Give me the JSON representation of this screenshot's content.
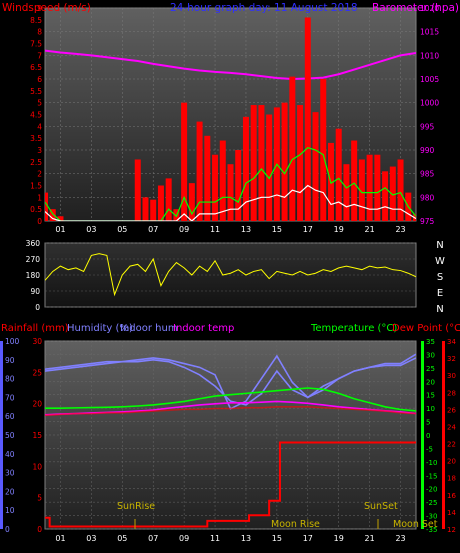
{
  "colors": {
    "wind_speed": "#ff0000",
    "wind_gust": "#00ff00",
    "wind_avg": "#ffffff",
    "barometer": "#ff00ff",
    "direction": "#ffff00",
    "rain": "#ff0000",
    "humidity": "#8080ff",
    "indoor_hum": "#8080ff",
    "indoor_temp": "#ff00ff",
    "temperature": "#00ff00",
    "dewpoint": "#ff0000",
    "plot_top": "#606060",
    "plot_bottom": "#202020",
    "humidity_axis": "#5a5aff",
    "temp_axis": "#00ff00",
    "dew_axis": "#ff0000"
  },
  "top_panel": {
    "left_title": "Windspeed (m/s)",
    "center_title": "24-hour graph day:  11 August 2018",
    "right_title": "Barometer (hpa)"
  },
  "direction_panel": {
    "compass_labels": [
      "N",
      "W",
      "S",
      "E",
      "N"
    ]
  },
  "bottom_panel": {
    "title_rainfall": "Rainfall (mm)",
    "title_humidity": "Humidity (%)",
    "title_indoor_hum": "Indoor hum",
    "title_indoor_temp": "Indoor temp",
    "title_temperature": "Temperature (°C)",
    "title_dewpoint": "Dew Point (°C)",
    "sunrise_label": "SunRise",
    "sunset_label": "SunSet",
    "moonrise_label": "Moon Rise",
    "moonset_label": "Moon Set"
  },
  "chart_data": [
    {
      "type": "area",
      "title": "24-hour graph day:  11 August 2018",
      "x_unit": "hour",
      "x_ticks": [
        "01",
        "03",
        "05",
        "07",
        "09",
        "11",
        "13",
        "15",
        "17",
        "19",
        "21",
        "23"
      ],
      "ylabel_left": "Windspeed (m/s)",
      "ylim_left": [
        0,
        9
      ],
      "yticks_left": [
        "0",
        "0.5",
        "1",
        "1.5",
        "2",
        "2.5",
        "3",
        "3.5",
        "4",
        "4.5",
        "5",
        "5.5",
        "6",
        "6.5",
        "7",
        "7.5",
        "8",
        "8.5",
        "9"
      ],
      "ylabel_right": "Barometer (hpa)",
      "ylim_right": [
        975,
        1020
      ],
      "yticks_right": [
        "975",
        "980",
        "985",
        "990",
        "995",
        "1000",
        "1005",
        "1010",
        "1015",
        "1020"
      ],
      "series": [
        {
          "name": "Windspeed (m/s)",
          "x": [
            0,
            0.5,
            1,
            1.5,
            2,
            2.5,
            3,
            3.5,
            4,
            4.5,
            5,
            5.5,
            6,
            6.5,
            7,
            7.5,
            8,
            8.5,
            9,
            9.5,
            10,
            10.5,
            11,
            11.5,
            12,
            12.5,
            13,
            13.5,
            14,
            14.5,
            15,
            15.5,
            16,
            16.5,
            17,
            17.5,
            18,
            18.5,
            19,
            19.5,
            20,
            20.5,
            21,
            21.5,
            22,
            22.5,
            23,
            23.5,
            24
          ],
          "values": [
            1.2,
            0.5,
            0.2,
            0,
            0,
            0,
            0,
            0,
            0,
            0,
            0,
            0,
            2.6,
            1.0,
            0.9,
            1.5,
            1.8,
            0.5,
            5.0,
            1.6,
            4.2,
            3.6,
            2.8,
            3.4,
            2.4,
            3.0,
            4.4,
            4.9,
            4.9,
            4.5,
            4.8,
            5.0,
            6.1,
            4.9,
            8.6,
            4.6,
            6.0,
            3.3,
            3.9,
            2.4,
            3.4,
            2.6,
            2.8,
            2.8,
            2.1,
            2.3,
            2.6,
            1.2,
            0.3
          ]
        },
        {
          "name": "Wind gust",
          "x": [
            0,
            0.5,
            1,
            1.5,
            2,
            2.5,
            3,
            3.5,
            4,
            4.5,
            5,
            5.5,
            6,
            6.5,
            7,
            7.5,
            8,
            8.5,
            9,
            9.5,
            10,
            10.5,
            11,
            11.5,
            12,
            12.5,
            13,
            13.5,
            14,
            14.5,
            15,
            15.5,
            16,
            16.5,
            17,
            17.5,
            18,
            18.5,
            19,
            19.5,
            20,
            20.5,
            21,
            21.5,
            22,
            22.5,
            23,
            23.5,
            24
          ],
          "values": [
            0.8,
            0.3,
            0,
            0,
            0,
            0,
            0,
            0,
            0,
            0,
            0,
            0,
            0,
            0,
            0,
            0,
            0.5,
            0.2,
            1.0,
            0.3,
            0.8,
            0.8,
            0.8,
            1.0,
            1.0,
            0.8,
            1.6,
            1.8,
            2.2,
            1.8,
            2.4,
            2.0,
            2.6,
            2.8,
            3.1,
            3.0,
            2.8,
            1.6,
            1.8,
            1.4,
            1.6,
            1.2,
            1.2,
            1.2,
            1.4,
            1.1,
            1.2,
            0.6,
            0.2
          ]
        },
        {
          "name": "Wind average",
          "x": [
            0,
            0.5,
            1,
            1.5,
            2,
            2.5,
            3,
            3.5,
            4,
            4.5,
            5,
            5.5,
            6,
            6.5,
            7,
            7.5,
            8,
            8.5,
            9,
            9.5,
            10,
            10.5,
            11,
            11.5,
            12,
            12.5,
            13,
            13.5,
            14,
            14.5,
            15,
            15.5,
            16,
            16.5,
            17,
            17.5,
            18,
            18.5,
            19,
            19.5,
            20,
            20.5,
            21,
            21.5,
            22,
            22.5,
            23,
            23.5,
            24
          ],
          "values": [
            0.4,
            0.1,
            0,
            0,
            0,
            0,
            0,
            0,
            0,
            0,
            0,
            0,
            0,
            0,
            0,
            0,
            0,
            0,
            0.3,
            0,
            0.3,
            0.3,
            0.3,
            0.4,
            0.5,
            0.5,
            0.8,
            0.9,
            1.0,
            1.0,
            1.1,
            1.0,
            1.3,
            1.2,
            1.5,
            1.3,
            1.2,
            0.7,
            0.8,
            0.6,
            0.7,
            0.6,
            0.5,
            0.5,
            0.6,
            0.5,
            0.5,
            0.3,
            0.1
          ]
        },
        {
          "name": "Barometer (hpa)",
          "axis": "right",
          "x": [
            0,
            1,
            2,
            3,
            4,
            5,
            6,
            7,
            8,
            9,
            10,
            11,
            12,
            13,
            14,
            15,
            16,
            17,
            18,
            19,
            20,
            21,
            22,
            23,
            24
          ],
          "values": [
            1011,
            1010.6,
            1010.3,
            1010,
            1009.6,
            1009.2,
            1008.8,
            1008.2,
            1007.7,
            1007.2,
            1006.8,
            1006.5,
            1006.3,
            1006,
            1005.6,
            1005.2,
            1005,
            1005.1,
            1005.3,
            1006,
            1007,
            1008,
            1009,
            1010,
            1010.5
          ]
        }
      ]
    },
    {
      "type": "scatter",
      "title": "",
      "x_unit": "hour",
      "ylim": [
        0,
        360
      ],
      "yticks": [
        "0",
        "90",
        "180",
        "270",
        "360"
      ],
      "series": [
        {
          "name": "Wind direction",
          "x": [
            0,
            0.5,
            1,
            1.5,
            2,
            2.5,
            3,
            3.5,
            4,
            4.5,
            5,
            5.5,
            6,
            6.5,
            7,
            7.5,
            8,
            8.5,
            9,
            9.5,
            10,
            10.5,
            11,
            11.5,
            12,
            12.5,
            13,
            13.5,
            14,
            14.5,
            15,
            15.5,
            16,
            16.5,
            17,
            17.5,
            18,
            18.5,
            19,
            19.5,
            20,
            20.5,
            21,
            21.5,
            22,
            22.5,
            23,
            23.5,
            24
          ],
          "values": [
            150,
            200,
            230,
            210,
            220,
            200,
            290,
            300,
            290,
            70,
            180,
            230,
            240,
            200,
            270,
            120,
            200,
            250,
            220,
            180,
            230,
            200,
            260,
            180,
            190,
            210,
            180,
            200,
            210,
            160,
            200,
            190,
            180,
            200,
            180,
            190,
            210,
            200,
            220,
            230,
            220,
            210,
            230,
            220,
            225,
            210,
            205,
            190,
            170
          ]
        }
      ]
    },
    {
      "type": "line",
      "title": "",
      "x_unit": "hour",
      "x_ticks": [
        "01",
        "03",
        "05",
        "07",
        "09",
        "11",
        "13",
        "15",
        "17",
        "19",
        "21",
        "23"
      ],
      "ylabel_left": "Rainfall (mm)",
      "ylim_left": [
        0,
        30
      ],
      "yticks_left": [
        "0",
        "5",
        "10",
        "15",
        "20",
        "25",
        "30"
      ],
      "ylabel_humidity": "Humidity (%)",
      "ylim_humidity": [
        0,
        100
      ],
      "yticks_humidity": [
        "0",
        "10",
        "20",
        "30",
        "40",
        "50",
        "60",
        "70",
        "80",
        "90",
        "100"
      ],
      "ylabel_right": "Temperature (°C)",
      "ylim_right": [
        -35,
        35
      ],
      "yticks_right": [
        "-35",
        "-30",
        "-25",
        "-20",
        "-15",
        "-10",
        "-5",
        "0",
        "5",
        "10",
        "15",
        "20",
        "25",
        "30",
        "35"
      ],
      "ylabel_right2": "Dew Point (°C)",
      "ylim_right2": [
        12,
        34
      ],
      "yticks_right2": [
        "12",
        "14",
        "16",
        "18",
        "20",
        "22",
        "24",
        "26",
        "28",
        "30",
        "32",
        "34"
      ],
      "series": [
        {
          "name": "Humidity (%)",
          "axis": "humidity",
          "x": [
            0,
            1,
            2,
            3,
            4,
            5,
            6,
            7,
            8,
            9,
            10,
            11,
            12,
            13,
            14,
            15,
            16,
            17,
            18,
            19,
            20,
            21,
            22,
            23,
            24
          ],
          "values": [
            85,
            86,
            87,
            88,
            89,
            89,
            90,
            91,
            90,
            88,
            86,
            82,
            64,
            68,
            80,
            92,
            78,
            70,
            76,
            80,
            84,
            86,
            88,
            88,
            93
          ]
        },
        {
          "name": "Indoor hum",
          "axis": "humidity",
          "x": [
            0,
            1,
            2,
            3,
            4,
            5,
            6,
            7,
            8,
            9,
            10,
            11,
            12,
            13,
            14,
            15,
            16,
            17,
            18,
            19,
            20,
            21,
            22,
            23,
            24
          ],
          "values": [
            84,
            85,
            86,
            87,
            88,
            89,
            89,
            90,
            89,
            86,
            82,
            76,
            68,
            66,
            72,
            84,
            74,
            70,
            74,
            80,
            84,
            86,
            87,
            87,
            91
          ]
        },
        {
          "name": "Indoor temp",
          "axis": "temperature",
          "x": [
            0,
            1,
            2,
            3,
            4,
            5,
            6,
            7,
            8,
            9,
            10,
            11,
            12,
            13,
            14,
            15,
            16,
            17,
            18,
            19,
            20,
            21,
            22,
            23,
            24
          ],
          "values": [
            7.5,
            7.8,
            8.0,
            8.2,
            8.4,
            8.6,
            8.9,
            9.3,
            10.0,
            10.6,
            11.2,
            11.6,
            12.0,
            12.0,
            12.2,
            12.5,
            12.2,
            11.8,
            11.2,
            10.5,
            10.0,
            9.5,
            9.0,
            8.6,
            8.0
          ]
        },
        {
          "name": "Temperature (°C)",
          "axis": "temperature",
          "x": [
            0,
            1,
            2,
            3,
            4,
            5,
            6,
            7,
            8,
            9,
            10,
            11,
            12,
            13,
            14,
            15,
            16,
            17,
            18,
            19,
            20,
            21,
            22,
            23,
            24
          ],
          "values": [
            10.0,
            10.0,
            10.1,
            10.2,
            10.3,
            10.5,
            10.8,
            11.2,
            11.8,
            12.5,
            13.5,
            14.5,
            15.0,
            15.5,
            16.0,
            16.5,
            17.0,
            17.5,
            17.0,
            15.5,
            13.5,
            12.0,
            10.5,
            9.5,
            9.0
          ]
        },
        {
          "name": "Dew Point (°C)",
          "axis": "dewpoint",
          "x": [
            0,
            1,
            2,
            3,
            4,
            5,
            6,
            7,
            8,
            9,
            10,
            11,
            12,
            13,
            14,
            15,
            16,
            17,
            18,
            19,
            20,
            21,
            22,
            23,
            24
          ],
          "values": [
            25.3,
            25.4,
            25.5,
            25.5,
            25.6,
            25.6,
            25.7,
            25.8,
            25.9,
            26.0,
            26.0,
            26.1,
            26.1,
            26.2,
            26.2,
            26.3,
            26.3,
            26.3,
            26.2,
            26.1,
            26.0,
            25.9,
            25.8,
            25.6,
            25.5
          ]
        },
        {
          "name": "Rainfall (mm)",
          "axis": "rainfall",
          "step": true,
          "x": [
            0,
            0.3,
            0.3,
            10.5,
            10.5,
            13.2,
            13.2,
            14.5,
            14.5,
            15.2,
            15.2,
            24
          ],
          "values": [
            1.8,
            1.8,
            0.4,
            0.4,
            1.3,
            1.3,
            2.2,
            2.2,
            4.5,
            4.5,
            13.8,
            13.8
          ]
        }
      ]
    }
  ]
}
